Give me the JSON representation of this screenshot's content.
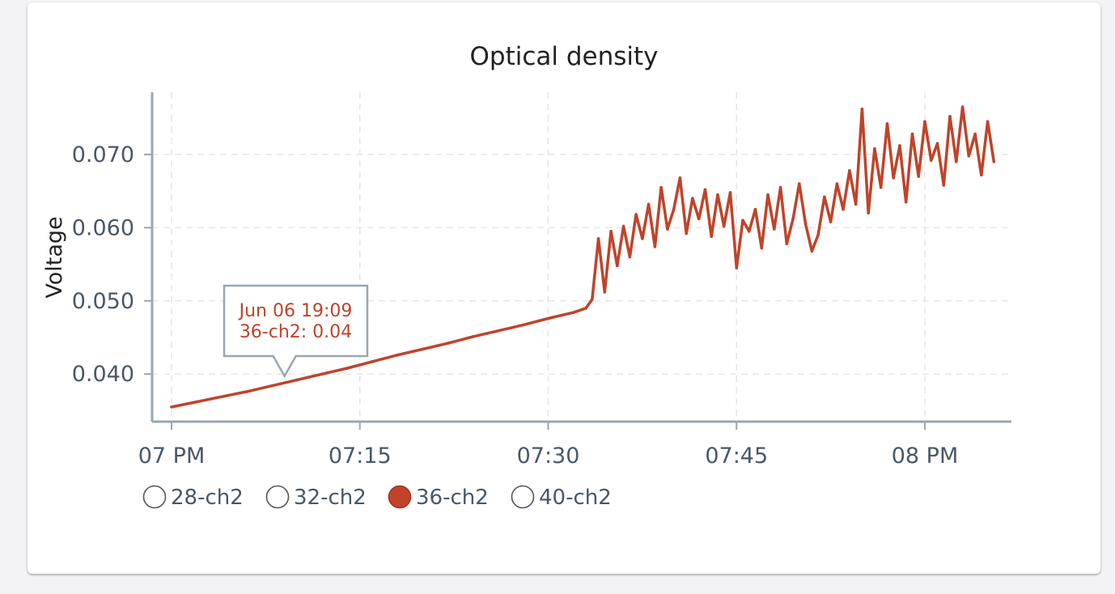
{
  "chart_data": {
    "type": "line",
    "title": "Optical density",
    "ylabel": "Voltage",
    "xlabel": "",
    "x_ticks": [
      "07 PM",
      "07:15",
      "07:30",
      "07:45",
      "08 PM"
    ],
    "y_ticks": [
      "0.040",
      "0.050",
      "0.060",
      "0.070"
    ],
    "x_range": [
      "19:00",
      "20:06"
    ],
    "ylim": [
      0.0335,
      0.0785
    ],
    "grid": true,
    "legend_position": "bottom-left",
    "legend": [
      {
        "name": "28-ch2",
        "selected": false,
        "color": "#ffffff"
      },
      {
        "name": "32-ch2",
        "selected": false,
        "color": "#ffffff"
      },
      {
        "name": "36-ch2",
        "selected": true,
        "color": "#c0432a"
      },
      {
        "name": "40-ch2",
        "selected": false,
        "color": "#ffffff"
      }
    ],
    "series": [
      {
        "name": "36-ch2",
        "color": "#c0432a",
        "x": [
          "19:00",
          "19:02",
          "19:04",
          "19:06",
          "19:08",
          "19:10",
          "19:12",
          "19:14",
          "19:16",
          "19:18",
          "19:20",
          "19:22",
          "19:24",
          "19:26",
          "19:28",
          "19:30",
          "19:32",
          "19:33",
          "19:33.5",
          "19:34",
          "19:34.5",
          "19:35",
          "19:35.5",
          "19:36",
          "19:36.5",
          "19:37",
          "19:37.5",
          "19:38",
          "19:38.5",
          "19:39",
          "19:39.5",
          "19:40",
          "19:40.5",
          "19:41",
          "19:41.5",
          "19:42",
          "19:42.5",
          "19:43",
          "19:43.5",
          "19:44",
          "19:44.5",
          "19:45",
          "19:45.5",
          "19:46",
          "19:46.5",
          "19:47",
          "19:47.5",
          "19:48",
          "19:48.5",
          "19:49",
          "19:49.5",
          "19:50",
          "19:50.5",
          "19:51",
          "19:51.5",
          "19:52",
          "19:52.5",
          "19:53",
          "19:53.5",
          "19:54",
          "19:54.5",
          "19:55",
          "19:55.5",
          "19:56",
          "19:56.5",
          "19:57",
          "19:57.5",
          "19:58",
          "19:58.5",
          "19:59",
          "19:59.5",
          "20:00",
          "20:00.5",
          "20:01",
          "20:01.5",
          "20:02",
          "20:02.5",
          "20:03",
          "20:03.5",
          "20:04",
          "20:04.5",
          "20:05",
          "20:05.5"
        ],
        "values": [
          0.0355,
          0.0362,
          0.0369,
          0.0376,
          0.0384,
          0.0392,
          0.04,
          0.0408,
          0.0417,
          0.0426,
          0.0434,
          0.0442,
          0.0451,
          0.0459,
          0.0467,
          0.0476,
          0.0484,
          0.049,
          0.0502,
          0.0585,
          0.0512,
          0.0595,
          0.0548,
          0.0602,
          0.056,
          0.0618,
          0.0585,
          0.0632,
          0.0574,
          0.0655,
          0.0598,
          0.0625,
          0.0668,
          0.0592,
          0.064,
          0.0612,
          0.0652,
          0.0588,
          0.0645,
          0.0602,
          0.0648,
          0.0545,
          0.061,
          0.0595,
          0.0625,
          0.0572,
          0.0645,
          0.0598,
          0.0655,
          0.0578,
          0.0612,
          0.066,
          0.0605,
          0.0568,
          0.059,
          0.0642,
          0.0608,
          0.066,
          0.0625,
          0.0678,
          0.0632,
          0.0762,
          0.062,
          0.0708,
          0.0655,
          0.0742,
          0.0668,
          0.0712,
          0.0635,
          0.0728,
          0.067,
          0.0745,
          0.0692,
          0.0715,
          0.0658,
          0.0752,
          0.069,
          0.0765,
          0.0698,
          0.0728,
          0.0672,
          0.0745,
          0.069
        ]
      }
    ],
    "tooltip": {
      "line1": "Jun 06 19:09",
      "line2": "36-ch2: 0.04",
      "x": "19:09",
      "value": 0.0395
    }
  }
}
